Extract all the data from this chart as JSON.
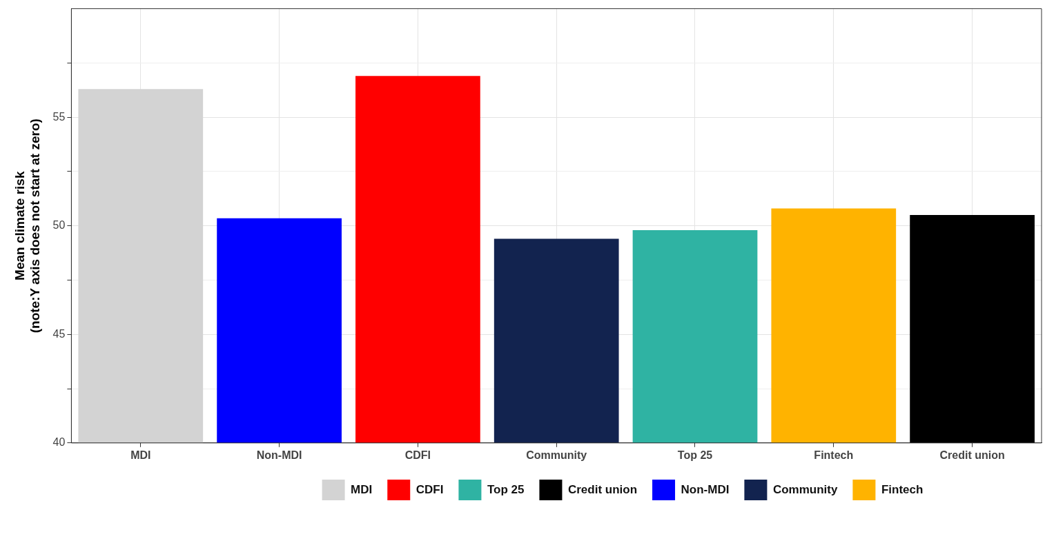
{
  "chart_data": {
    "type": "bar",
    "ylabel": "Mean climate risk\n(note:Y axis does not start at zero)",
    "categories": [
      "MDI",
      "Non-MDI",
      "CDFI",
      "Community",
      "Top 25",
      "Fintech",
      "Credit union"
    ],
    "series": [
      {
        "name": "MDI",
        "color": "#d3d3d3",
        "values": [
          56.3,
          null,
          null,
          null,
          null,
          null,
          null
        ]
      },
      {
        "name": "Non-MDI",
        "color": "#0000ff",
        "values": [
          null,
          50.35,
          null,
          null,
          null,
          null,
          null
        ]
      },
      {
        "name": "CDFI",
        "color": "#ff0000",
        "values": [
          null,
          null,
          56.9,
          null,
          null,
          null,
          null
        ]
      },
      {
        "name": "Community",
        "color": "#12234f",
        "values": [
          null,
          null,
          null,
          49.4,
          null,
          null,
          null
        ]
      },
      {
        "name": "Top 25",
        "color": "#2fb3a3",
        "values": [
          null,
          null,
          null,
          null,
          49.8,
          null,
          null
        ]
      },
      {
        "name": "Fintech",
        "color": "#ffb300",
        "values": [
          null,
          null,
          null,
          null,
          null,
          50.8,
          null
        ]
      },
      {
        "name": "Credit union",
        "color": "#000000",
        "values": [
          null,
          null,
          null,
          null,
          null,
          null,
          50.5
        ]
      }
    ],
    "ylim": [
      40,
      60
    ],
    "yticks": [
      40,
      {
        "value": 42.5,
        "label": null
      },
      45,
      {
        "value": 47.5,
        "label": null
      },
      50,
      {
        "value": 52.5,
        "label": null
      },
      55,
      {
        "value": 57.5,
        "label": null
      }
    ],
    "grid": true,
    "legend": "bottom"
  }
}
